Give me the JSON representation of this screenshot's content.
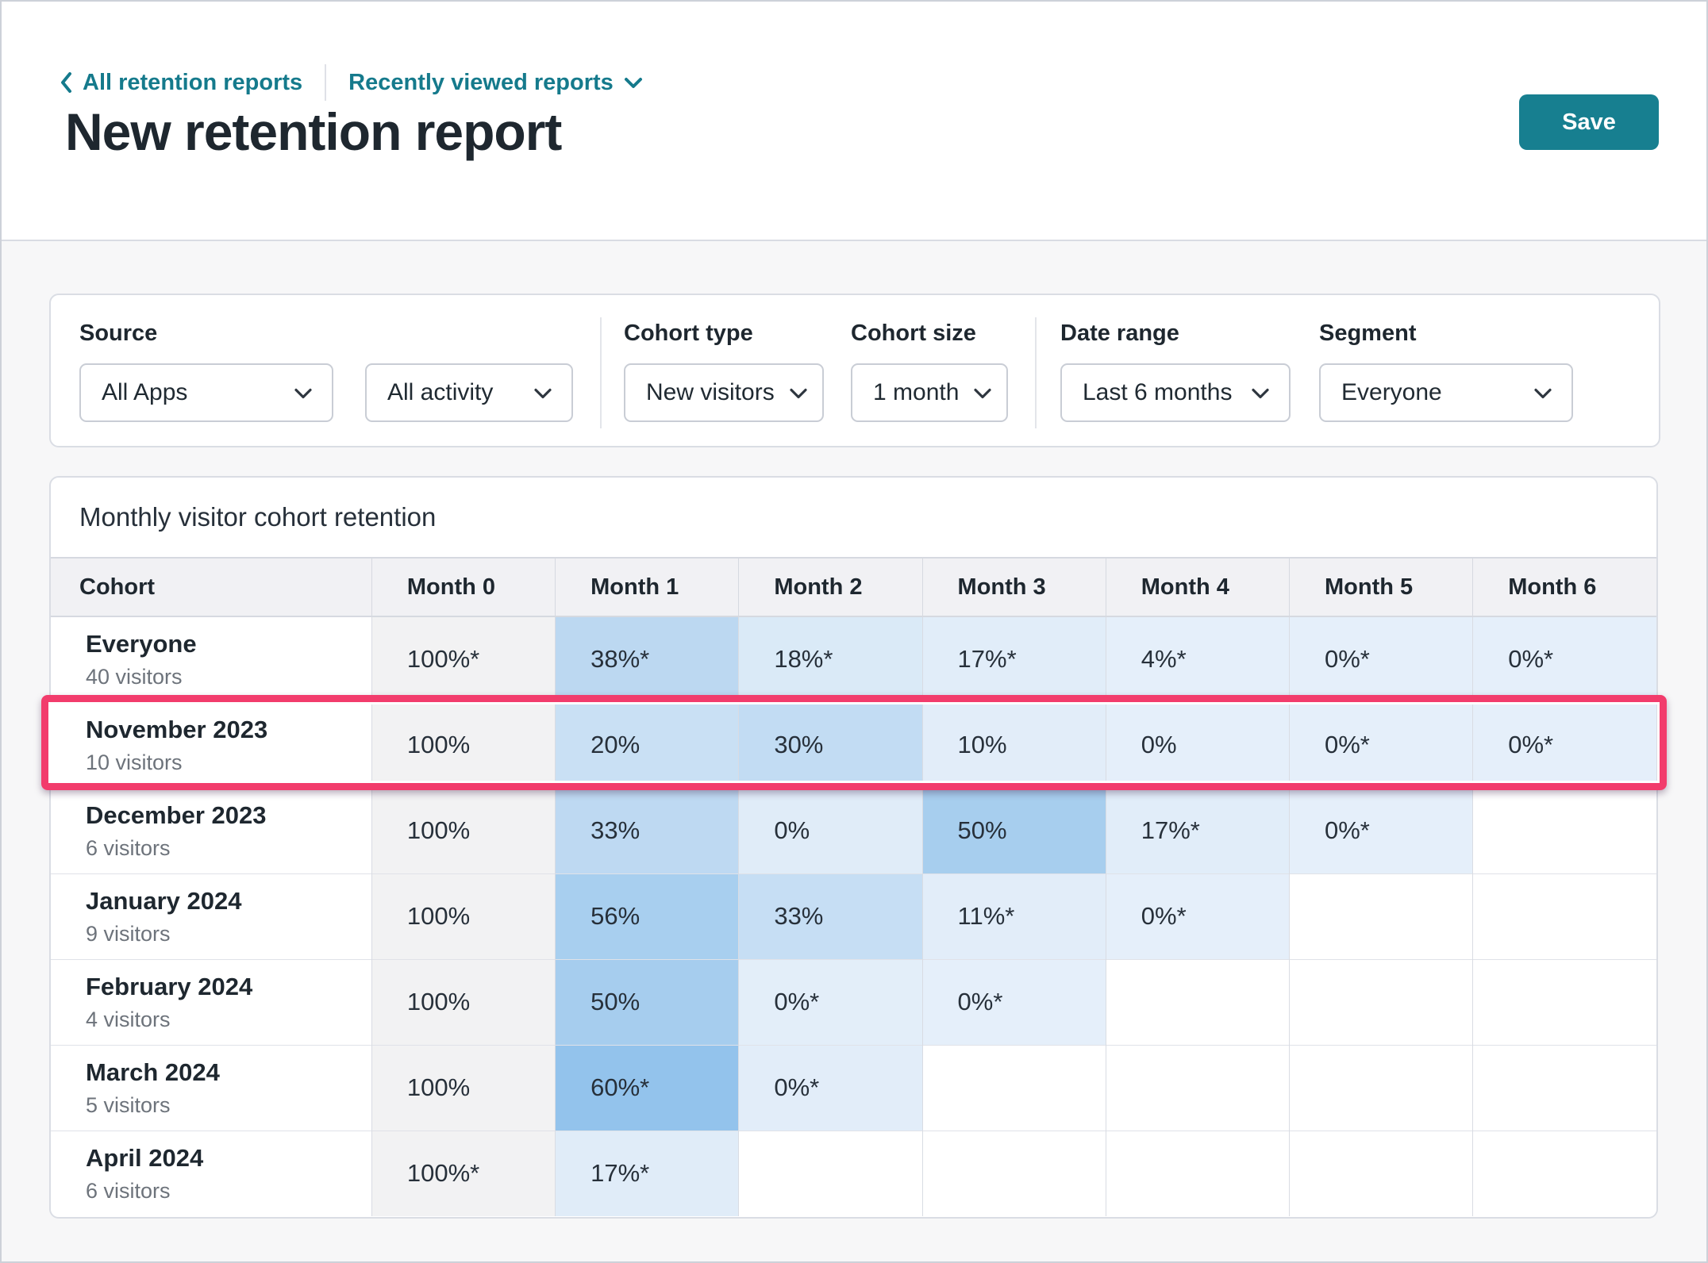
{
  "page": {
    "breadcrumb_back": "All retention reports",
    "breadcrumb_menu": "Recently viewed reports",
    "title": "New retention report",
    "save_label": "Save"
  },
  "colors": {
    "accent_teal": "#177f90",
    "link_teal": "#157a8c",
    "highlight_pink": "#f23c6c",
    "month0_gray": "#f2f2f3"
  },
  "filters": {
    "source": {
      "label": "Source",
      "apps_value": "All Apps",
      "activity_value": "All activity"
    },
    "cohort_type": {
      "label": "Cohort type",
      "value": "New visitors"
    },
    "cohort_size": {
      "label": "Cohort size",
      "value": "1 month"
    },
    "date_range": {
      "label": "Date range",
      "value": "Last 6 months"
    },
    "segment": {
      "label": "Segment",
      "value": "Everyone"
    }
  },
  "table": {
    "title": "Monthly visitor cohort retention",
    "columns": [
      "Cohort",
      "Month 0",
      "Month 1",
      "Month 2",
      "Month 3",
      "Month 4",
      "Month 5",
      "Month 6"
    ],
    "rows": [
      {
        "cohort": "Everyone",
        "visitors": "40 visitors",
        "highlight": false,
        "cells": [
          {
            "text": "100%*",
            "bg": "#f2f2f3"
          },
          {
            "text": "38%*",
            "bg": "#bcd8f1"
          },
          {
            "text": "18%*",
            "bg": "#daeaf7"
          },
          {
            "text": "17%*",
            "bg": "#e1edf9"
          },
          {
            "text": "4%*",
            "bg": "#e5effa"
          },
          {
            "text": "0%*",
            "bg": "#e5effa"
          },
          {
            "text": "0%*",
            "bg": "#e5effa"
          }
        ]
      },
      {
        "cohort": "November 2023",
        "visitors": "10 visitors",
        "highlight": true,
        "cells": [
          {
            "text": "100%",
            "bg": "#f2f2f3"
          },
          {
            "text": "20%",
            "bg": "#c9e0f4"
          },
          {
            "text": "30%",
            "bg": "#c2dcf3"
          },
          {
            "text": "10%",
            "bg": "#e2edf9"
          },
          {
            "text": "0%",
            "bg": "#e5effa"
          },
          {
            "text": "0%*",
            "bg": "#e5effa"
          },
          {
            "text": "0%*",
            "bg": "#e5effa"
          }
        ]
      },
      {
        "cohort": "December 2023",
        "visitors": "6 visitors",
        "highlight": false,
        "cells": [
          {
            "text": "100%",
            "bg": "#f2f2f3"
          },
          {
            "text": "33%",
            "bg": "#bed9f2"
          },
          {
            "text": "0%",
            "bg": "#e0ecf8"
          },
          {
            "text": "50%",
            "bg": "#a7ceee"
          },
          {
            "text": "17%*",
            "bg": "#e1edf9"
          },
          {
            "text": "0%*",
            "bg": "#e5effa"
          },
          {
            "text": "",
            "bg": "#ffffff"
          }
        ]
      },
      {
        "cohort": "January 2024",
        "visitors": "9 visitors",
        "highlight": false,
        "cells": [
          {
            "text": "100%",
            "bg": "#f2f2f3"
          },
          {
            "text": "56%",
            "bg": "#a8cfef"
          },
          {
            "text": "33%",
            "bg": "#c6def4"
          },
          {
            "text": "11%*",
            "bg": "#e2edf9"
          },
          {
            "text": "0%*",
            "bg": "#e5effa"
          },
          {
            "text": "",
            "bg": "#ffffff"
          },
          {
            "text": "",
            "bg": "#ffffff"
          }
        ]
      },
      {
        "cohort": "February 2024",
        "visitors": "4 visitors",
        "highlight": false,
        "cells": [
          {
            "text": "100%",
            "bg": "#f2f2f3"
          },
          {
            "text": "50%",
            "bg": "#a6cdee"
          },
          {
            "text": "0%*",
            "bg": "#e3eef9"
          },
          {
            "text": "0%*",
            "bg": "#e5effa"
          },
          {
            "text": "",
            "bg": "#ffffff"
          },
          {
            "text": "",
            "bg": "#ffffff"
          },
          {
            "text": "",
            "bg": "#ffffff"
          }
        ]
      },
      {
        "cohort": "March 2024",
        "visitors": "5 visitors",
        "highlight": false,
        "cells": [
          {
            "text": "100%",
            "bg": "#f2f2f3"
          },
          {
            "text": "60%*",
            "bg": "#93c3ec"
          },
          {
            "text": "0%*",
            "bg": "#e2edf9"
          },
          {
            "text": "",
            "bg": "#ffffff"
          },
          {
            "text": "",
            "bg": "#ffffff"
          },
          {
            "text": "",
            "bg": "#ffffff"
          },
          {
            "text": "",
            "bg": "#ffffff"
          }
        ]
      },
      {
        "cohort": "April 2024",
        "visitors": "6 visitors",
        "highlight": false,
        "cells": [
          {
            "text": "100%*",
            "bg": "#f2f2f3"
          },
          {
            "text": "17%*",
            "bg": "#e0ecf8"
          },
          {
            "text": "",
            "bg": "#ffffff"
          },
          {
            "text": "",
            "bg": "#ffffff"
          },
          {
            "text": "",
            "bg": "#ffffff"
          },
          {
            "text": "",
            "bg": "#ffffff"
          },
          {
            "text": "",
            "bg": "#ffffff"
          }
        ]
      }
    ]
  }
}
